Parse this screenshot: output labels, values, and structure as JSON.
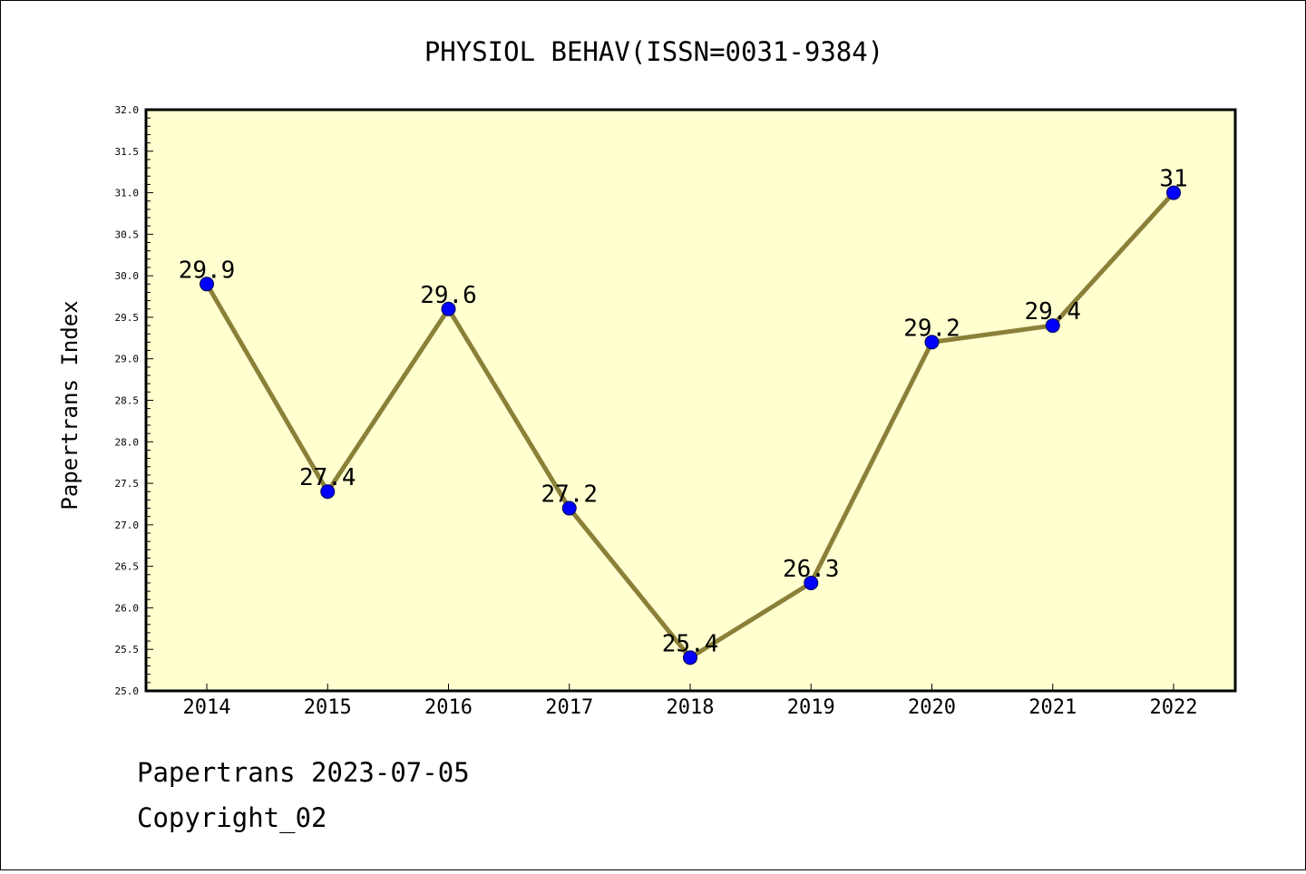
{
  "chart_data": {
    "type": "line",
    "title": "PHYSIOL BEHAV(ISSN=0031-9384)",
    "xlabel": "",
    "ylabel": "Papertrans Index",
    "x": [
      "2014",
      "2015",
      "2016",
      "2017",
      "2018",
      "2019",
      "2020",
      "2021",
      "2022"
    ],
    "series": [
      {
        "values": [
          29.9,
          27.4,
          29.6,
          27.2,
          25.4,
          26.3,
          29.2,
          29.4,
          31
        ]
      }
    ],
    "data_labels": [
      "29.9",
      "27.4",
      "29.6",
      "27.2",
      "25.4",
      "26.3",
      "29.2",
      "29.4",
      "31"
    ],
    "ylim": [
      25.0,
      32.0
    ],
    "yticks": [
      "25.0",
      "25.5",
      "26.0",
      "26.5",
      "27.0",
      "27.5",
      "28.0",
      "28.5",
      "29.0",
      "29.5",
      "30.0",
      "30.5",
      "31.0",
      "31.5",
      "32.0"
    ],
    "grid": false,
    "legend": "none",
    "colors": {
      "plot_background": "#ffffd0",
      "line": "#8b8038",
      "marker": "#0000ff"
    }
  },
  "footer": {
    "line1": "Papertrans 2023-07-05",
    "line2": "Copyright_02"
  }
}
